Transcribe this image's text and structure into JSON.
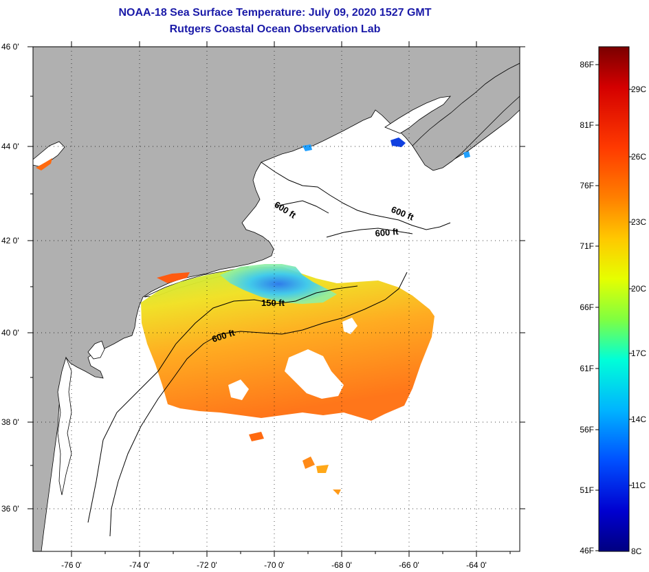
{
  "header": {
    "title": "NOAA-18 Sea Surface Temperature:  July 09, 2020 1527 GMT",
    "subtitle": "Rutgers Coastal Ocean Observation Lab"
  },
  "map": {
    "lat_labels": [
      "46 0'",
      "44 0'",
      "42 0'",
      "40 0'",
      "38 0'",
      "36 0'"
    ],
    "lon_labels": [
      "-76 0'",
      "-74 0'",
      "-72 0'",
      "-70 0'",
      "-68 0'",
      "-66 0'",
      "-64 0'"
    ],
    "contour_labels": [
      "600 ft",
      "600 ft",
      "600 ft",
      "150 ft",
      "600 ft"
    ],
    "colors": {
      "land": "#b0b0b0",
      "ocean": "#ffffff",
      "coast": "#000000"
    }
  },
  "colorbar": {
    "f_labels": [
      "86F",
      "81F",
      "76F",
      "71F",
      "66F",
      "61F",
      "56F",
      "51F",
      "46F"
    ],
    "c_labels": [
      "29C",
      "26C",
      "23C",
      "20C",
      "17C",
      "14C",
      "11C",
      "8C"
    ],
    "stops": [
      "#7a0000",
      "#d40000",
      "#ff3a00",
      "#ff8000",
      "#ffc800",
      "#e6ff00",
      "#80ff40",
      "#00ffd8",
      "#00b4ff",
      "#0050ff",
      "#0000d0",
      "#000080"
    ]
  }
}
